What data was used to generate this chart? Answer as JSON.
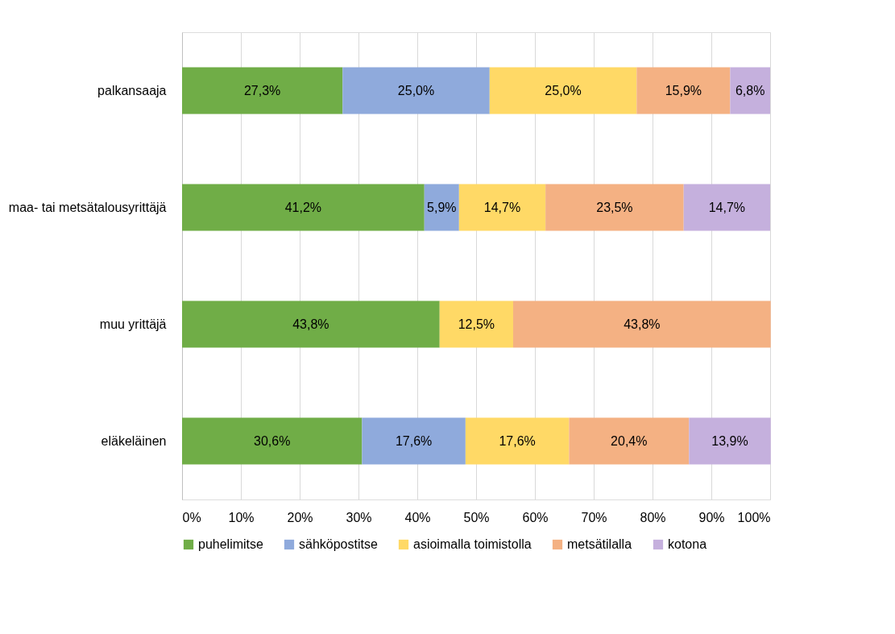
{
  "chart_data": {
    "type": "bar",
    "orientation": "horizontal",
    "stacked": true,
    "categories": [
      "palkansaaja",
      "maa- tai metsätalousyrittäjä",
      "muu yrittäjä",
      "eläkeläinen"
    ],
    "series": [
      {
        "name": "puhelimitse",
        "color": "#70ad47",
        "values": [
          27.3,
          41.2,
          43.8,
          30.6
        ],
        "value_labels": [
          "27,3%",
          "41,2%",
          "43,8%",
          "30,6%"
        ]
      },
      {
        "name": "sähköpostitse",
        "color": "#8faadc",
        "values": [
          25.0,
          5.9,
          null,
          17.6
        ],
        "value_labels": [
          "25,0%",
          "5,9%",
          null,
          "17,6%"
        ]
      },
      {
        "name": "asioimalla toimistolla",
        "color": "#ffd966",
        "values": [
          25.0,
          14.7,
          12.5,
          17.6
        ],
        "value_labels": [
          "25,0%",
          "14,7%",
          "12,5%",
          "17,6%"
        ]
      },
      {
        "name": "metsätilalla",
        "color": "#f4b183",
        "values": [
          15.9,
          23.5,
          43.8,
          20.4
        ],
        "value_labels": [
          "15,9%",
          "23,5%",
          "43,8%",
          "20,4%"
        ]
      },
      {
        "name": "kotona",
        "color": "#c5b0dd",
        "values": [
          6.8,
          14.7,
          null,
          13.9
        ],
        "value_labels": [
          "6,8%",
          "14,7%",
          null,
          "13,9%"
        ]
      }
    ],
    "xlim": [
      0,
      100
    ],
    "xticks": [
      {
        "value": 0,
        "label": "0%"
      },
      {
        "value": 10,
        "label": "10%"
      },
      {
        "value": 20,
        "label": "20%"
      },
      {
        "value": 30,
        "label": "30%"
      },
      {
        "value": 40,
        "label": "40%"
      },
      {
        "value": 50,
        "label": "50%"
      },
      {
        "value": 60,
        "label": "60%"
      },
      {
        "value": 70,
        "label": "70%"
      },
      {
        "value": 80,
        "label": "80%"
      },
      {
        "value": 90,
        "label": "90%"
      },
      {
        "value": 100,
        "label": "100%"
      }
    ],
    "grid": "x",
    "legend": "bottom"
  }
}
